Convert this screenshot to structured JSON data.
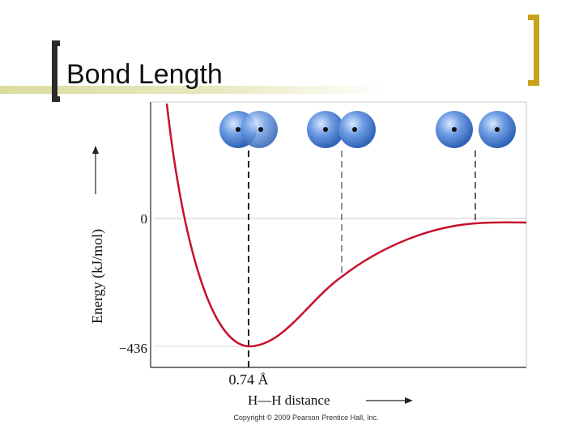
{
  "slide": {
    "title": "Bond Length"
  },
  "figure": {
    "copyright": "Copyright © 2009 Pearson Prentice Hall, Inc."
  },
  "chart_data": {
    "type": "line",
    "title": "",
    "xlabel": "H—H distance",
    "ylabel": "Energy (kJ/mol)",
    "ylim": [
      -436,
      0
    ],
    "y_ticks": [
      "0",
      "−436"
    ],
    "x_annotation": "0.74 Å",
    "series": [
      {
        "values": []
      }
    ],
    "curve_color": "#c8102e",
    "atom_color": "#5b8fd6"
  }
}
